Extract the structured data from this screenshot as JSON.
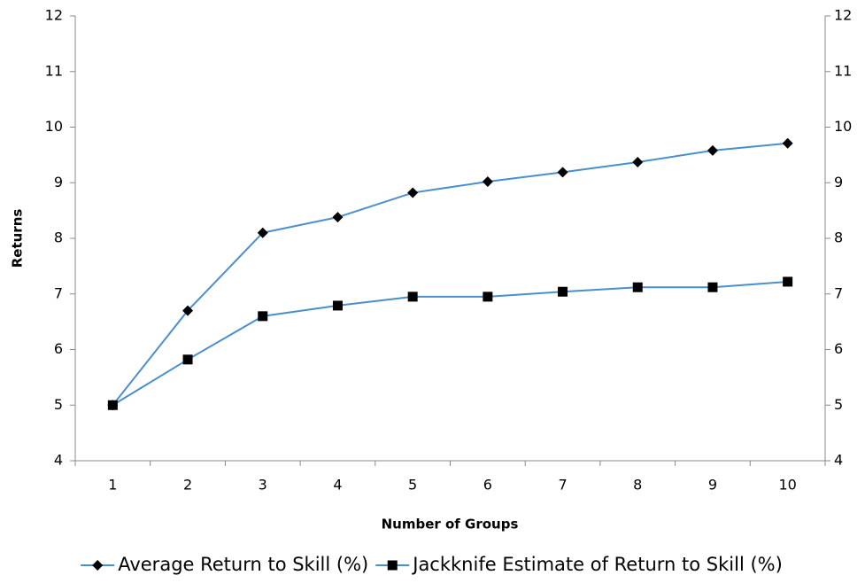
{
  "chart_data": {
    "type": "line",
    "x_label": "Number of Groups",
    "y_label": "Returns",
    "categories": [
      "1",
      "2",
      "3",
      "4",
      "5",
      "6",
      "7",
      "8",
      "9",
      "10"
    ],
    "series": [
      {
        "name": "Average Return to Skill (%)",
        "color": "#4a8fcc",
        "marker": "diamond",
        "marker_color": "#000000",
        "values": [
          5.0,
          6.7,
          8.1,
          8.38,
          8.82,
          9.02,
          9.19,
          9.37,
          9.58,
          9.71
        ]
      },
      {
        "name": "Jackknife Estimate of Return to Skill (%)",
        "color": "#4a8fcc",
        "marker": "square",
        "marker_color": "#000000",
        "values": [
          5.0,
          5.82,
          6.6,
          6.79,
          6.95,
          6.95,
          7.04,
          7.12,
          7.12,
          7.22
        ]
      }
    ],
    "ylim": [
      4,
      12
    ],
    "yticks": [
      4,
      5,
      6,
      7,
      8,
      9,
      10,
      11,
      12
    ],
    "y2lim": [
      4,
      12
    ],
    "y2ticks": [
      4,
      5,
      6,
      7,
      8,
      9,
      10,
      11,
      12
    ],
    "grid": false,
    "legend": "bottom"
  }
}
